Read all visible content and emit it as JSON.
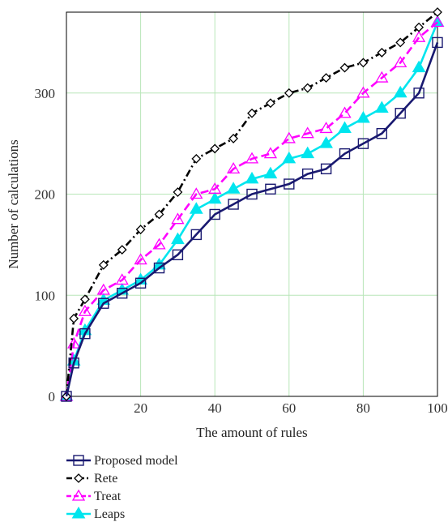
{
  "chart_data": {
    "type": "line",
    "title": "",
    "xlabel": "The amount of rules",
    "ylabel": "Number of calculations",
    "xlim": [
      0,
      100
    ],
    "ylim": [
      0,
      380
    ],
    "x_ticks": [
      20,
      40,
      60,
      80,
      100
    ],
    "y_ticks": [
      0,
      100,
      200,
      300
    ],
    "grid": true,
    "legend_position": "below",
    "x": [
      0,
      2,
      5,
      10,
      15,
      20,
      25,
      30,
      35,
      40,
      45,
      50,
      55,
      60,
      65,
      70,
      75,
      80,
      85,
      90,
      95,
      100
    ],
    "series": [
      {
        "name": "Proposed model",
        "color": "#191970",
        "marker": "square",
        "style": "solid",
        "values": [
          0,
          33,
          62,
          92,
          102,
          112,
          127,
          140,
          160,
          180,
          190,
          200,
          205,
          210,
          220,
          225,
          240,
          250,
          260,
          280,
          300,
          350
        ]
      },
      {
        "name": "Rete",
        "color": "#000000",
        "marker": "diamond",
        "style": "dashdot",
        "values": [
          0,
          77,
          96,
          130,
          145,
          165,
          180,
          202,
          235,
          245,
          255,
          280,
          290,
          300,
          305,
          315,
          325,
          330,
          340,
          350,
          365,
          380
        ]
      },
      {
        "name": "Treat",
        "color": "#ff00ff",
        "marker": "triangle-open",
        "style": "dashed",
        "values": [
          0,
          52,
          84,
          105,
          115,
          135,
          150,
          175,
          200,
          205,
          225,
          235,
          240,
          255,
          260,
          265,
          280,
          300,
          315,
          330,
          355,
          370
        ]
      },
      {
        "name": "Leaps",
        "color": "#00e5ee",
        "marker": "triangle-filled",
        "style": "solid",
        "values": [
          0,
          35,
          65,
          95,
          105,
          115,
          130,
          155,
          185,
          195,
          205,
          215,
          220,
          235,
          240,
          250,
          265,
          275,
          285,
          300,
          325,
          370
        ]
      }
    ]
  }
}
